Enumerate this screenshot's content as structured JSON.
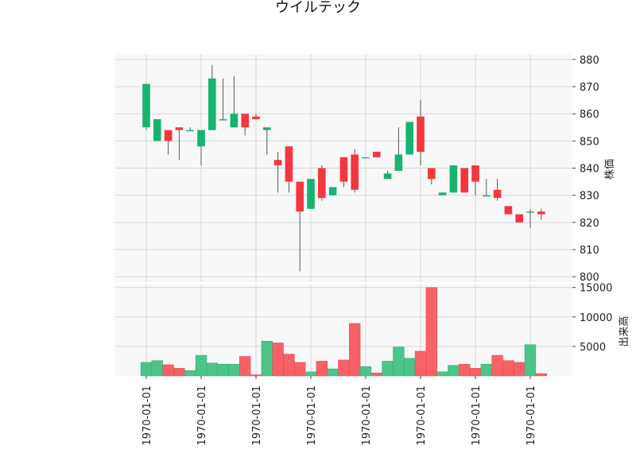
{
  "chart_data": {
    "type": "candlestick",
    "title": "ウイルテック",
    "price_axis_label": "株価",
    "volume_axis_label": "出来高",
    "price_ylim": [
      798,
      882
    ],
    "price_ticks": [
      800,
      810,
      820,
      830,
      840,
      850,
      860,
      870,
      880
    ],
    "volume_ylim": [
      0,
      15500
    ],
    "volume_ticks": [
      5000,
      10000,
      15000
    ],
    "x_tick_labels": [
      "1970-01-01",
      "1970-01-01",
      "1970-01-01",
      "1970-01-01",
      "1970-01-01",
      "1970-01-01",
      "1970-01-01",
      "1970-01-01"
    ],
    "x_tick_positions": [
      0,
      5,
      10,
      15,
      20,
      25,
      30,
      35
    ],
    "grid": true,
    "colors": {
      "up": "#16b46e",
      "down": "#f5363f",
      "vol_up": "#4cc58b",
      "vol_down": "#f86166",
      "background": "#f8f8f8",
      "grid": "#d6d6d6"
    },
    "candles": [
      {
        "o": 855,
        "h": 871,
        "l": 854,
        "c": 871,
        "v": 2300
      },
      {
        "o": 850,
        "h": 858,
        "l": 850,
        "c": 858,
        "v": 2600
      },
      {
        "o": 854,
        "h": 854,
        "l": 845,
        "c": 850,
        "v": 1900
      },
      {
        "o": 855,
        "h": 855,
        "l": 843,
        "c": 854,
        "v": 1300
      },
      {
        "o": 854,
        "h": 855,
        "l": 854,
        "c": 854,
        "v": 900
      },
      {
        "o": 848,
        "h": 854,
        "l": 841,
        "c": 854,
        "v": 3500
      },
      {
        "o": 854,
        "h": 878,
        "l": 854,
        "c": 873,
        "v": 2200
      },
      {
        "o": 858,
        "h": 873,
        "l": 858,
        "c": 858,
        "v": 2000
      },
      {
        "o": 855,
        "h": 874,
        "l": 855,
        "c": 860,
        "v": 2000
      },
      {
        "o": 860,
        "h": 860,
        "l": 852,
        "c": 855,
        "v": 3300
      },
      {
        "o": 859,
        "h": 860,
        "l": 858,
        "c": 858,
        "v": 200
      },
      {
        "o": 854,
        "h": 855,
        "l": 845,
        "c": 855,
        "v": 5900
      },
      {
        "o": 843,
        "h": 846,
        "l": 831,
        "c": 841,
        "v": 5600
      },
      {
        "o": 848,
        "h": 848,
        "l": 831,
        "c": 835,
        "v": 3700
      },
      {
        "o": 835,
        "h": 835,
        "l": 802,
        "c": 824,
        "v": 2300
      },
      {
        "o": 825,
        "h": 836,
        "l": 825,
        "c": 836,
        "v": 700
      },
      {
        "o": 840,
        "h": 841,
        "l": 828,
        "c": 829,
        "v": 2500
      },
      {
        "o": 830,
        "h": 833,
        "l": 830,
        "c": 833,
        "v": 1200
      },
      {
        "o": 844,
        "h": 844,
        "l": 833,
        "c": 835,
        "v": 2700
      },
      {
        "o": 845,
        "h": 847,
        "l": 831,
        "c": 832,
        "v": 8900
      },
      {
        "o": 844,
        "h": 844,
        "l": 844,
        "c": 844,
        "v": 1600
      },
      {
        "o": 846,
        "h": 846,
        "l": 844,
        "c": 844,
        "v": 500
      },
      {
        "o": 836,
        "h": 839,
        "l": 836,
        "c": 838,
        "v": 2500
      },
      {
        "o": 839,
        "h": 855,
        "l": 839,
        "c": 845,
        "v": 4900
      },
      {
        "o": 845,
        "h": 857,
        "l": 845,
        "c": 857,
        "v": 3000
      },
      {
        "o": 859,
        "h": 865,
        "l": 841,
        "c": 846,
        "v": 4200
      },
      {
        "o": 840,
        "h": 840,
        "l": 834,
        "c": 836,
        "v": 15000
      },
      {
        "o": 830,
        "h": 831,
        "l": 830,
        "c": 831,
        "v": 700
      },
      {
        "o": 831,
        "h": 841,
        "l": 831,
        "c": 841,
        "v": 1800
      },
      {
        "o": 840,
        "h": 840,
        "l": 831,
        "c": 831,
        "v": 2000
      },
      {
        "o": 841,
        "h": 841,
        "l": 830,
        "c": 835,
        "v": 1300
      },
      {
        "o": 830,
        "h": 836,
        "l": 830,
        "c": 830,
        "v": 2000
      },
      {
        "o": 832,
        "h": 836,
        "l": 828,
        "c": 829,
        "v": 3500
      },
      {
        "o": 826,
        "h": 826,
        "l": 823,
        "c": 823,
        "v": 2600
      },
      {
        "o": 823,
        "h": 823,
        "l": 820,
        "c": 820,
        "v": 2300
      },
      {
        "o": 824,
        "h": 825,
        "l": 818,
        "c": 824,
        "v": 5300
      },
      {
        "o": 824,
        "h": 825,
        "l": 821,
        "c": 823,
        "v": 400
      }
    ]
  }
}
